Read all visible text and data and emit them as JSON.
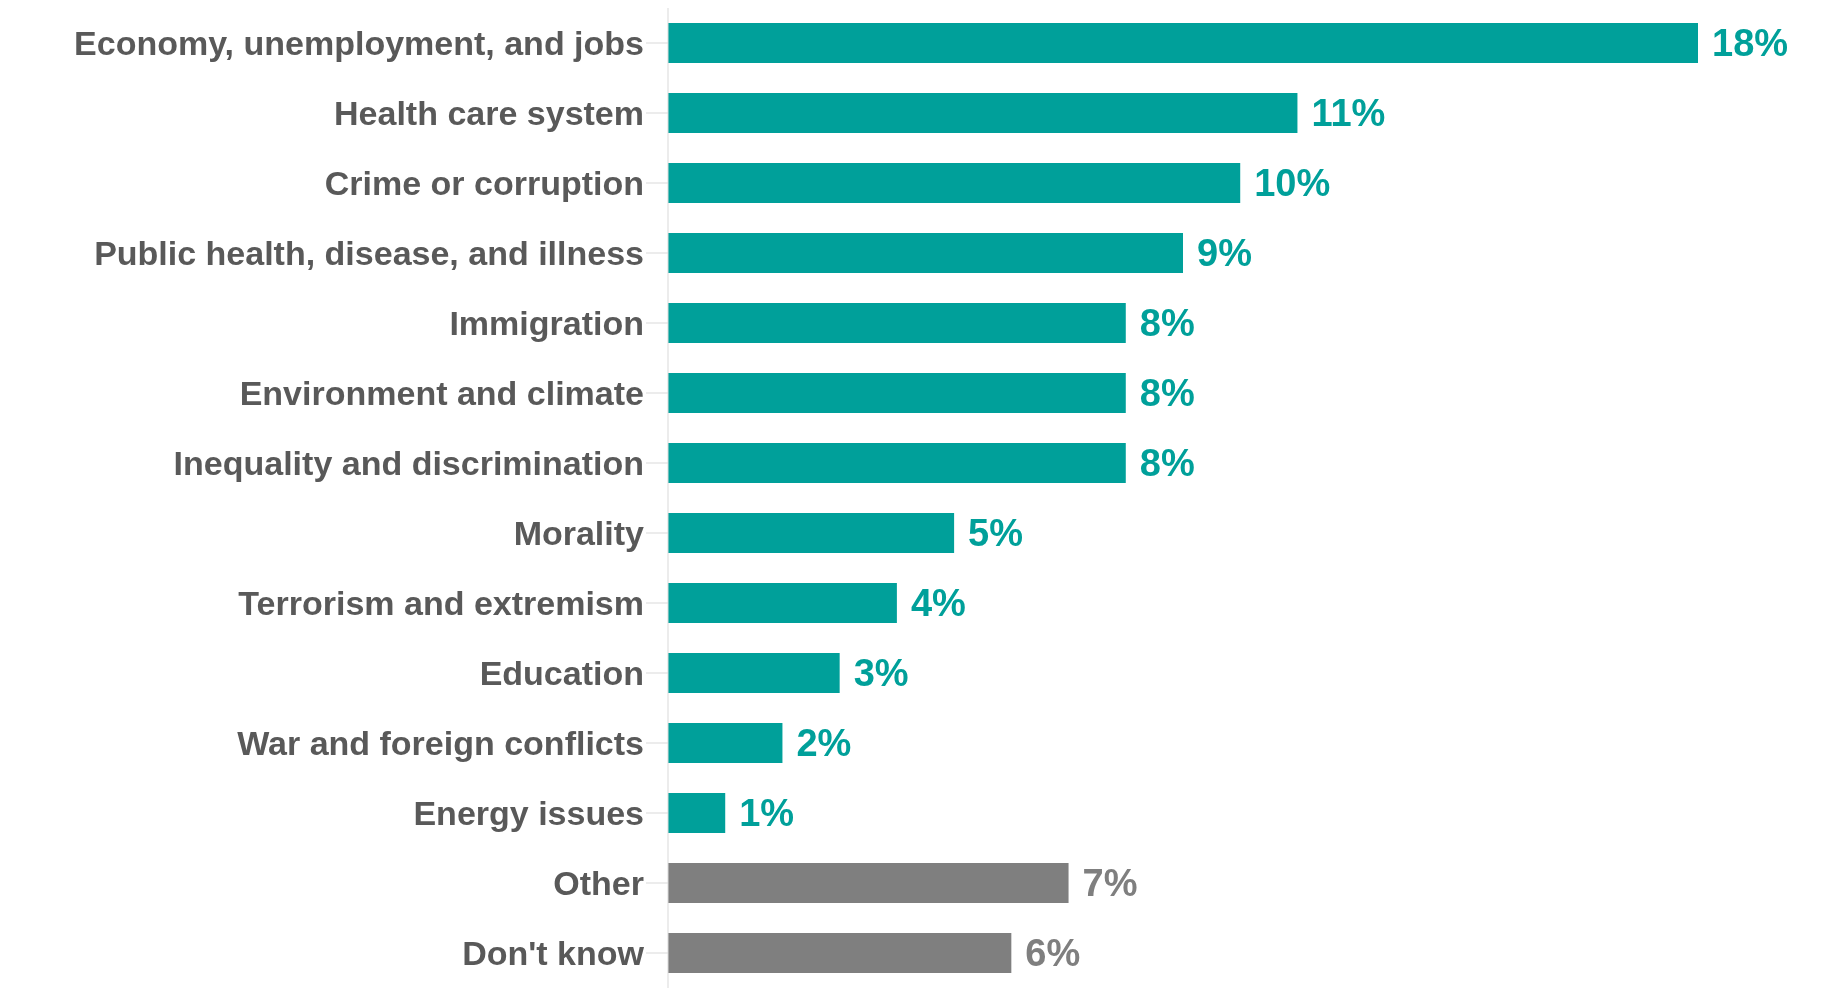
{
  "chart_data": {
    "type": "bar",
    "orientation": "horizontal",
    "categories": [
      "Economy, unemployment, and jobs",
      "Health care system",
      "Crime or corruption",
      "Public health, disease, and illness",
      "Immigration",
      "Environment and climate",
      "Inequality and discrimination",
      "Morality",
      "Terrorism and extremism",
      "Education",
      "War and foreign conflicts",
      "Energy issues",
      "Other",
      "Don't know"
    ],
    "values": [
      18,
      11,
      10,
      9,
      8,
      8,
      8,
      5,
      4,
      3,
      2,
      1,
      7,
      6
    ],
    "value_labels": [
      "18%",
      "11%",
      "10%",
      "9%",
      "8%",
      "8%",
      "8%",
      "5%",
      "4%",
      "3%",
      "2%",
      "1%",
      "7%",
      "6%"
    ],
    "colors": [
      "#00a09a",
      "#00a09a",
      "#00a09a",
      "#00a09a",
      "#00a09a",
      "#00a09a",
      "#00a09a",
      "#00a09a",
      "#00a09a",
      "#00a09a",
      "#00a09a",
      "#00a09a",
      "#7f7f7f",
      "#7f7f7f"
    ],
    "grid": false,
    "legend": false
  }
}
